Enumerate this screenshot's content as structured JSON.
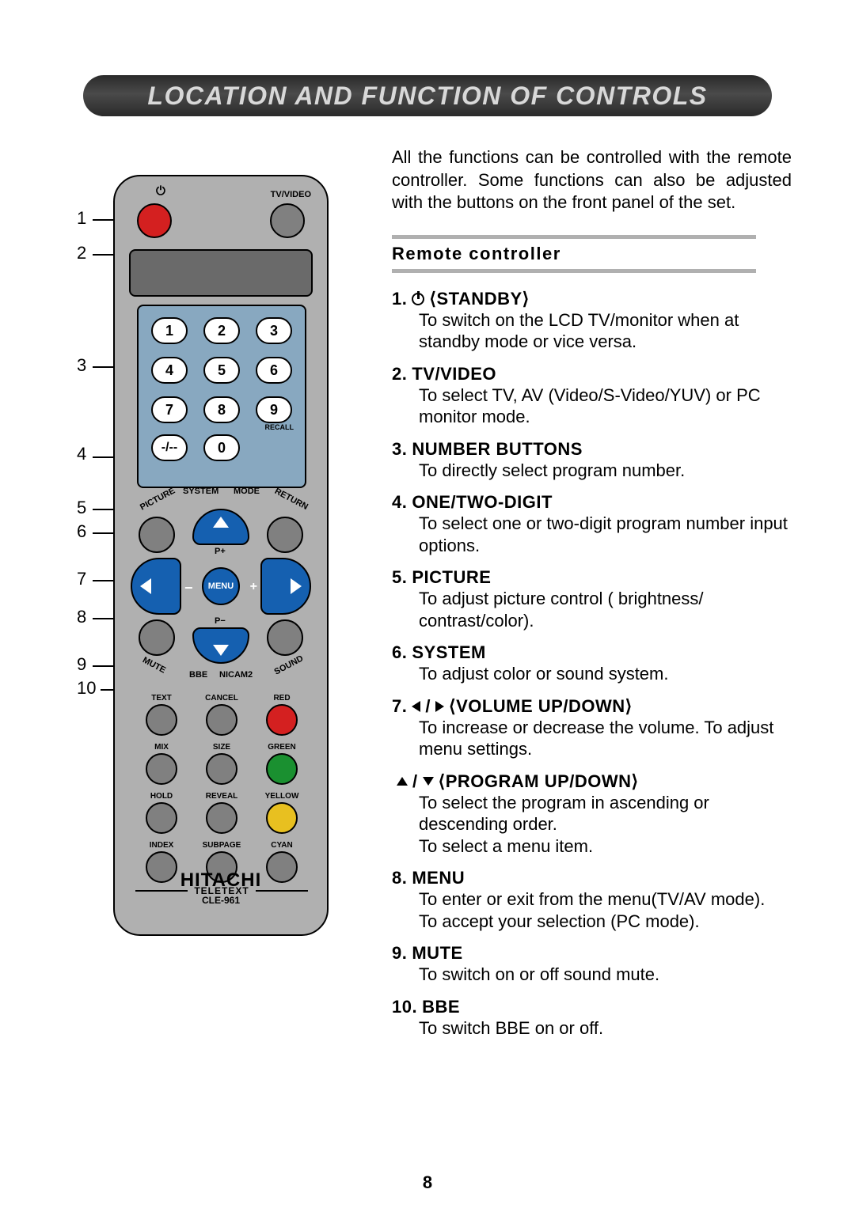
{
  "title": "LOCATION AND FUNCTION OF CONTROLS",
  "intro": "All the functions can be controlled with the remote controller. Some functions can also be adjusted with the buttons on the front panel of the set.",
  "section": "Remote controller",
  "page_number": "8",
  "remote": {
    "brand": "HITACHI",
    "model": "CLE-961",
    "tvvideo_label": "TV/VIDEO",
    "recall_label": "RECALL",
    "menu_label": "MENU",
    "pplus": "P+",
    "pminus": "P−",
    "teletext_label": "TELETEXT",
    "numbers": [
      "1",
      "2",
      "3",
      "4",
      "5",
      "6",
      "7",
      "8",
      "9"
    ],
    "zero": "0",
    "arc_labels": [
      "PICTURE",
      "SYSTEM",
      "MODE",
      "RETURN"
    ],
    "corner_labels": [
      "MUTE",
      "BBE",
      "NICAM2",
      "SOUND"
    ],
    "teletext_buttons": [
      {
        "label": "TEXT",
        "color": "#808080"
      },
      {
        "label": "CANCEL",
        "color": "#808080"
      },
      {
        "label": "RED",
        "color": "#d42020"
      },
      {
        "label": "MIX",
        "color": "#808080"
      },
      {
        "label": "SIZE",
        "color": "#808080"
      },
      {
        "label": "GREEN",
        "color": "#1a9030"
      },
      {
        "label": "HOLD",
        "color": "#808080"
      },
      {
        "label": "REVEAL",
        "color": "#808080"
      },
      {
        "label": "YELLOW",
        "color": "#e8c020"
      },
      {
        "label": "INDEX",
        "color": "#808080"
      },
      {
        "label": "SUBPAGE",
        "color": "#808080"
      },
      {
        "label": "CYAN",
        "color": "#808080"
      }
    ]
  },
  "callouts": [
    "1",
    "2",
    "3",
    "4",
    "5",
    "6",
    "7",
    "8",
    "9",
    "10"
  ],
  "items": [
    {
      "num": "1.",
      "icon": "power",
      "title": "⟨STANDBY⟩",
      "desc": "To switch on the LCD TV/monitor when at standby mode or vice versa."
    },
    {
      "num": "2.",
      "title": "TV/VIDEO",
      "desc": "To select TV, AV (Video/S-Video/YUV) or PC monitor mode."
    },
    {
      "num": "3.",
      "title": "NUMBER BUTTONS",
      "desc": "To directly select program number."
    },
    {
      "num": "4.",
      "title": "ONE/TWO-DIGIT",
      "desc": "To select one or two-digit program number input options."
    },
    {
      "num": "5.",
      "title": "PICTURE",
      "desc": "To adjust picture control ( brightness/ contrast/color)."
    },
    {
      "num": "6.",
      "title": "SYSTEM",
      "desc": "To adjust color or sound system."
    },
    {
      "num": "7.",
      "icon": "lr",
      "title": "⟨VOLUME UP/DOWN⟩",
      "desc": "To increase or decrease the volume. To adjust menu settings."
    },
    {
      "num": "",
      "icon": "ud",
      "title": "⟨PROGRAM UP/DOWN⟩",
      "desc": "To select the program in ascending or descending order.\nTo select a menu item."
    },
    {
      "num": "8.",
      "title": "MENU",
      "desc": "To enter or exit from the menu(TV/AV mode).\nTo accept your selection (PC mode)."
    },
    {
      "num": "9.",
      "title": "MUTE",
      "desc": "To switch on or off sound mute."
    },
    {
      "num": "10.",
      "title": "BBE",
      "desc": "To switch BBE on or off."
    }
  ],
  "colors": {
    "title_bg": "#3a3a3a",
    "title_text": "#d8d8d8",
    "remote_body": "#b0b0b0",
    "numpad_bg": "#88a8c0",
    "nav_blue": "#1560b0",
    "red": "#d42020",
    "grey_btn": "#808080",
    "divider": "#b0b0b0"
  }
}
